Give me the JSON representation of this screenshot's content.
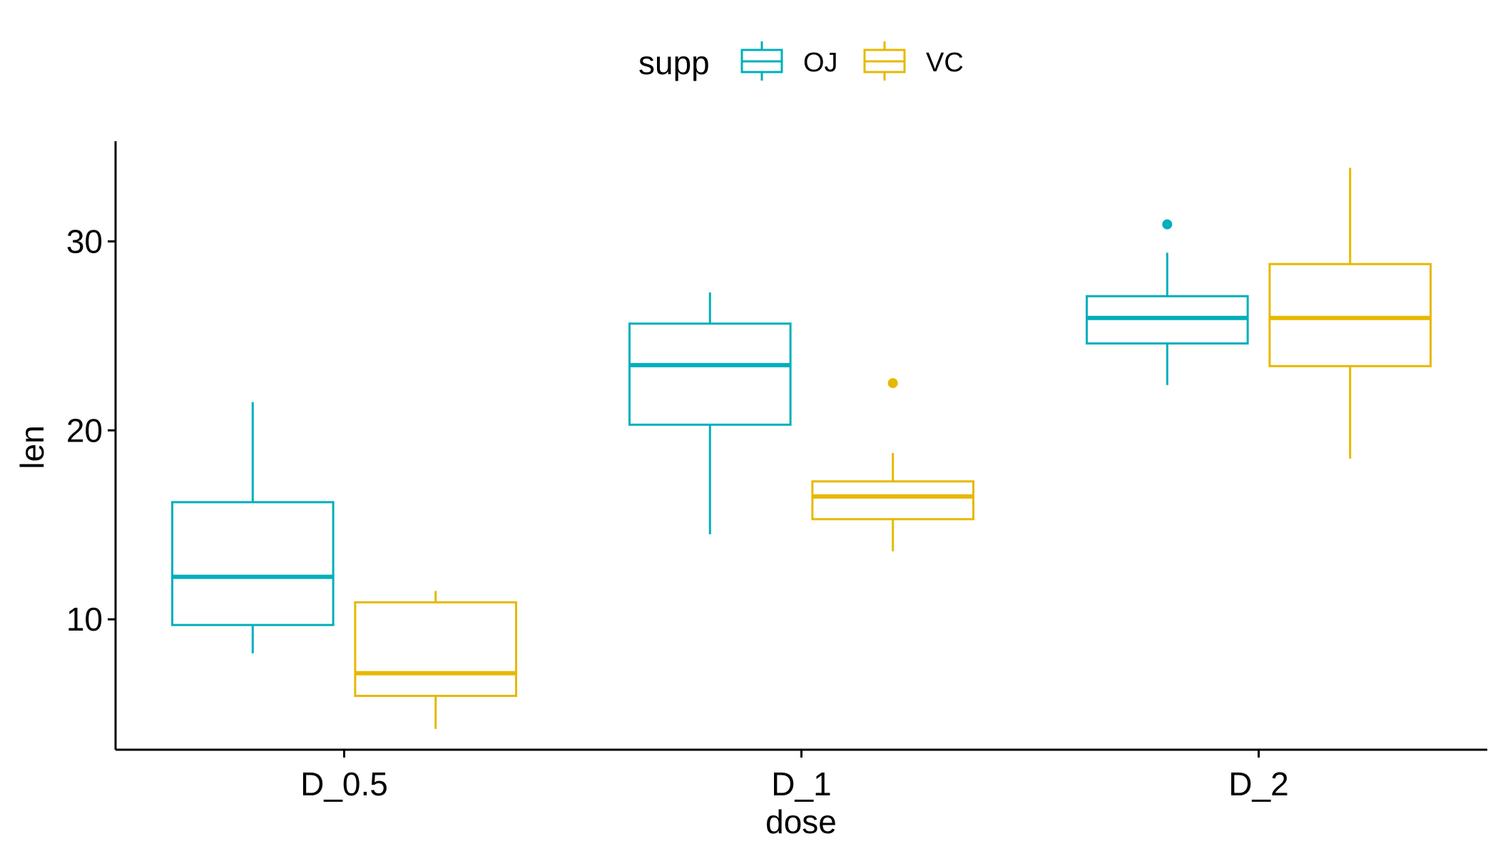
{
  "chart_data": {
    "type": "boxplot",
    "title": "",
    "xlabel": "dose",
    "ylabel": "len",
    "categories": [
      "D_0.5",
      "D_1",
      "D_2"
    ],
    "yticks": [
      10,
      20,
      30
    ],
    "ylim": [
      3.1,
      35.3
    ],
    "grid": false,
    "legend": {
      "title": "supp",
      "position": "top"
    },
    "series": [
      {
        "name": "OJ",
        "color": "#00AFBB",
        "boxes": [
          {
            "category": "D_0.5",
            "min": 8.2,
            "q1": 9.7,
            "median": 12.25,
            "q3": 16.2,
            "max": 21.5,
            "outliers": []
          },
          {
            "category": "D_1",
            "min": 14.5,
            "q1": 20.3,
            "median": 23.45,
            "q3": 25.65,
            "max": 27.3,
            "outliers": []
          },
          {
            "category": "D_2",
            "min": 22.4,
            "q1": 24.6,
            "median": 25.95,
            "q3": 27.1,
            "max": 29.4,
            "outliers": [
              30.9
            ]
          }
        ]
      },
      {
        "name": "VC",
        "color": "#E7B800",
        "boxes": [
          {
            "category": "D_0.5",
            "min": 4.2,
            "q1": 5.95,
            "median": 7.15,
            "q3": 10.9,
            "max": 11.5,
            "outliers": []
          },
          {
            "category": "D_1",
            "min": 13.6,
            "q1": 15.3,
            "median": 16.5,
            "q3": 17.3,
            "max": 18.8,
            "outliers": [
              22.5
            ]
          },
          {
            "category": "D_2",
            "min": 18.5,
            "q1": 23.4,
            "median": 25.95,
            "q3": 28.8,
            "max": 33.9,
            "outliers": []
          }
        ]
      }
    ]
  }
}
